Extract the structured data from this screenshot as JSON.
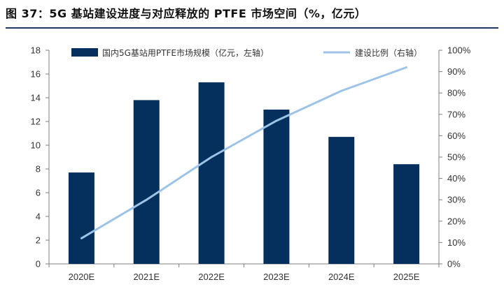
{
  "title": "图 37：5G 基站建设进度与对应释放的 PTFE 市场空间（%，亿元）",
  "colors": {
    "bar": "#05305e",
    "line": "#9dc3e6",
    "axis": "#7f7f7f",
    "title_rule": "#1f3a60"
  },
  "chart_data": {
    "type": "bar+line",
    "categories": [
      "2020E",
      "2021E",
      "2022E",
      "2023E",
      "2024E",
      "2025E"
    ],
    "series": [
      {
        "name": "国内5G基站用PTFE市场规模（亿元，左轴）",
        "type": "bar",
        "axis": "left",
        "values": [
          7.7,
          13.8,
          15.3,
          13.0,
          10.7,
          8.4
        ]
      },
      {
        "name": "建设比例（右轴）",
        "type": "line",
        "axis": "right",
        "values": [
          0.12,
          0.3,
          0.5,
          0.67,
          0.81,
          0.92
        ]
      }
    ],
    "y_left": {
      "min": 0,
      "max": 18,
      "step": 2,
      "ticks": [
        "0",
        "2",
        "4",
        "6",
        "8",
        "10",
        "12",
        "14",
        "16",
        "18"
      ]
    },
    "y_right": {
      "min": 0,
      "max": 1,
      "step": 0.1,
      "ticks": [
        "0%",
        "10%",
        "20%",
        "30%",
        "40%",
        "50%",
        "60%",
        "70%",
        "80%",
        "90%",
        "100%"
      ]
    },
    "grid": false,
    "legend": "top"
  }
}
